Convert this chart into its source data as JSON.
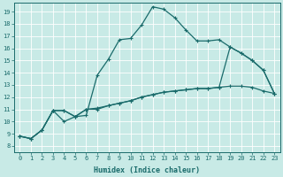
{
  "xlabel": "Humidex (Indice chaleur)",
  "bg_color": "#c8eae6",
  "line_color": "#1a6b6b",
  "grid_color": "#ffffff",
  "xlim": [
    -0.5,
    23.5
  ],
  "ylim": [
    7.5,
    19.7
  ],
  "xticks": [
    0,
    1,
    2,
    3,
    4,
    5,
    6,
    7,
    8,
    9,
    10,
    11,
    12,
    13,
    14,
    15,
    16,
    17,
    18,
    19,
    20,
    21,
    22,
    23
  ],
  "yticks": [
    8,
    9,
    10,
    11,
    12,
    13,
    14,
    15,
    16,
    17,
    18,
    19
  ],
  "curve1_x": [
    0,
    1,
    2,
    3,
    4,
    5,
    6,
    7,
    8,
    9,
    10,
    11,
    12,
    13,
    14,
    15,
    16,
    17,
    18,
    19,
    20,
    21,
    22,
    23
  ],
  "curve1_y": [
    8.8,
    8.6,
    9.3,
    10.9,
    10.0,
    10.4,
    10.5,
    13.8,
    15.1,
    16.7,
    16.8,
    17.9,
    19.4,
    19.2,
    18.5,
    17.5,
    16.6,
    16.6,
    16.7,
    16.1,
    15.6,
    15.0,
    14.2,
    12.3
  ],
  "curve2_x": [
    0,
    1,
    2,
    3,
    4,
    5,
    6,
    7,
    8,
    9,
    10,
    11,
    12,
    13,
    14,
    15,
    16,
    17,
    18,
    19,
    20,
    21,
    22,
    23
  ],
  "curve2_y": [
    8.8,
    8.6,
    9.3,
    10.9,
    10.9,
    10.4,
    11.0,
    11.0,
    11.3,
    11.5,
    11.7,
    12.0,
    12.2,
    12.4,
    12.5,
    12.6,
    12.7,
    12.7,
    12.8,
    16.1,
    15.6,
    15.0,
    14.2,
    12.3
  ],
  "curve3_x": [
    0,
    1,
    2,
    3,
    4,
    5,
    6,
    7,
    8,
    9,
    10,
    11,
    12,
    13,
    14,
    15,
    16,
    17,
    18,
    19,
    20,
    21,
    22,
    23
  ],
  "curve3_y": [
    8.8,
    8.6,
    9.3,
    10.9,
    10.9,
    10.4,
    11.0,
    11.1,
    11.3,
    11.5,
    11.7,
    12.0,
    12.2,
    12.4,
    12.5,
    12.6,
    12.7,
    12.7,
    12.8,
    12.9,
    12.9,
    12.8,
    12.5,
    12.3
  ]
}
